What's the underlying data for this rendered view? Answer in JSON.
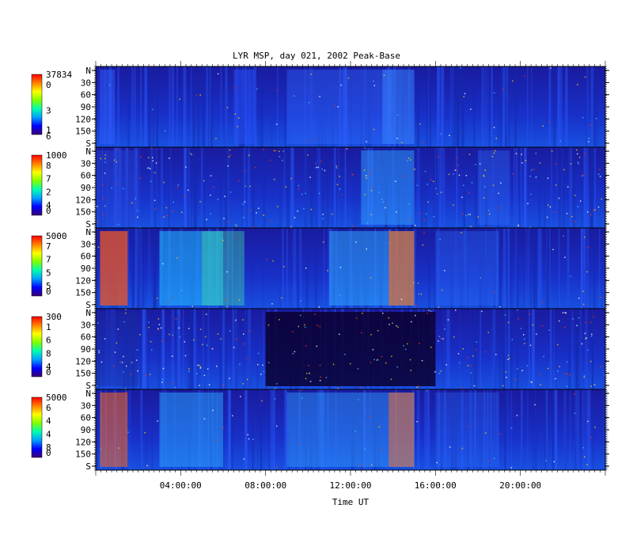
{
  "chart_data": {
    "type": "heatmap",
    "title": "LYR MSP, day 021, 2002 Peak-Base",
    "xlabel": "Time UT",
    "x_tick_labels": [
      "04:00:00",
      "08:00:00",
      "12:00:00",
      "16:00:00",
      "20:00:00"
    ],
    "x_ticks_hours": [
      4,
      8,
      12,
      16,
      20
    ],
    "xlim_hours": [
      0,
      24
    ],
    "ylim_deg": [
      0,
      180
    ],
    "y_tick_labels": [
      "N",
      "30",
      "60",
      "90",
      "120",
      "150",
      "S"
    ],
    "y_tick_values": [
      0,
      30,
      60,
      90,
      120,
      150,
      180
    ],
    "colormap": [
      "#3b0073",
      "#0000ff",
      "#00a0ff",
      "#00ffb0",
      "#80ff00",
      "#ffff00",
      "#ff8000",
      "#ff0000"
    ],
    "panels": [
      {
        "colorbar_max": "37834",
        "colorbar_labels": [
          "0",
          "3",
          "6"
        ],
        "colorbar_min": "1"
      },
      {
        "colorbar_max": "1000",
        "colorbar_labels": [
          "8",
          "7",
          "2",
          "4"
        ],
        "colorbar_min": "0"
      },
      {
        "colorbar_max": "5000",
        "colorbar_labels": [
          "7",
          "7",
          "5",
          "5"
        ],
        "colorbar_min": "0"
      },
      {
        "colorbar_max": "300",
        "colorbar_labels": [
          "1",
          "6",
          "8",
          "4"
        ],
        "colorbar_min": "0"
      },
      {
        "colorbar_max": "5000",
        "colorbar_labels": [
          "6",
          "4",
          "4",
          "8"
        ],
        "colorbar_min": "0"
      }
    ]
  }
}
